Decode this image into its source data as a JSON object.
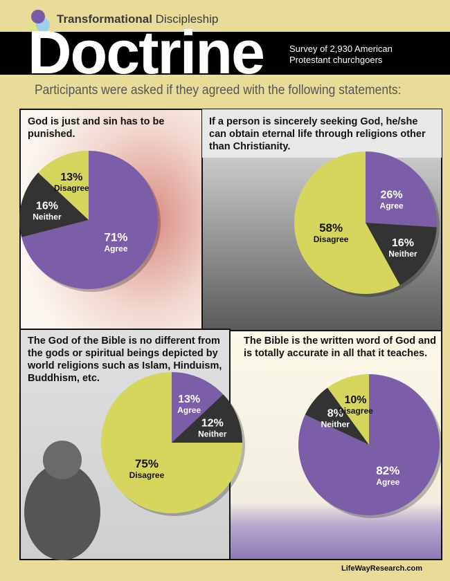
{
  "header": {
    "brand_bold": "Transformational",
    "brand_light": "Discipleship",
    "title": "Doctrine",
    "subtitle_line1": "Survey of 2,930 American",
    "subtitle_line2": "Protestant churchgoers",
    "intro": "Participants were asked if they agreed with the following statements:"
  },
  "colors": {
    "agree": "#7b5ea7",
    "neither": "#333333",
    "disagree": "#d7d65c",
    "background": "#e9dc98"
  },
  "chart_data": [
    {
      "type": "pie",
      "title": "God is just and sin has to be punished.",
      "categories": [
        "Agree",
        "Neither",
        "Disagree"
      ],
      "values": [
        71,
        16,
        13
      ],
      "labels": [
        "71%",
        "16%",
        "13%"
      ]
    },
    {
      "type": "pie",
      "title": "If a person is sincerely seeking God, he/she can obtain eternal life through religions other than Christianity.",
      "categories": [
        "Agree",
        "Neither",
        "Disagree"
      ],
      "values": [
        26,
        16,
        58
      ],
      "labels": [
        "26%",
        "16%",
        "58%"
      ]
    },
    {
      "type": "pie",
      "title": "The God of the Bible is no different from the gods or spiritual beings depicted by world religions such as Islam, Hinduism, Buddhism, etc.",
      "categories": [
        "Agree",
        "Neither",
        "Disagree"
      ],
      "values": [
        13,
        12,
        75
      ],
      "labels": [
        "13%",
        "12%",
        "75%"
      ]
    },
    {
      "type": "pie",
      "title": "The Bible is the written word of God and is totally accurate in all that it teaches.",
      "categories": [
        "Agree",
        "Neither",
        "Disagree"
      ],
      "values": [
        82,
        8,
        10
      ],
      "labels": [
        "82%",
        "8%",
        "10%"
      ]
    }
  ],
  "footer": "LifeWayResearch.com"
}
